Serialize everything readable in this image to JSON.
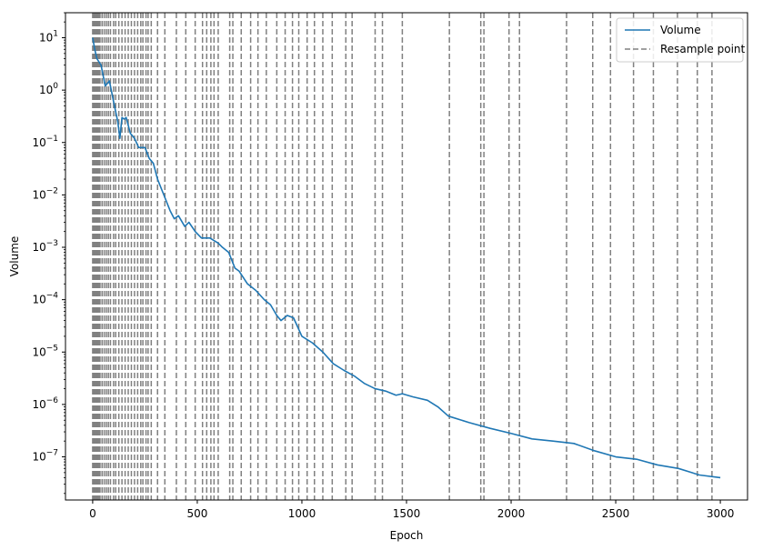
{
  "chart_data": {
    "type": "line",
    "xlabel": "Epoch",
    "ylabel": "Volume",
    "xlim": [
      -130,
      3130
    ],
    "ylim": [
      1.5e-08,
      30
    ],
    "yscale": "log",
    "grid": false,
    "legend_position": "top-right",
    "x_ticks": [
      0,
      500,
      1000,
      1500,
      2000,
      2500,
      3000
    ],
    "x_tick_labels": [
      "0",
      "500",
      "1000",
      "1500",
      "2000",
      "2500",
      "3000"
    ],
    "y_ticks": [
      {
        "value": 10,
        "base": "10",
        "exp": "1"
      },
      {
        "value": 1,
        "base": "10",
        "exp": "0"
      },
      {
        "value": 0.1,
        "base": "10",
        "exp": "−1"
      },
      {
        "value": 0.01,
        "base": "10",
        "exp": "−2"
      },
      {
        "value": 0.001,
        "base": "10",
        "exp": "−3"
      },
      {
        "value": 0.0001,
        "base": "10",
        "exp": "−4"
      },
      {
        "value": 1e-05,
        "base": "10",
        "exp": "−5"
      },
      {
        "value": 1e-06,
        "base": "10",
        "exp": "−6"
      },
      {
        "value": 1e-07,
        "base": "10",
        "exp": "−7"
      }
    ],
    "series": [
      {
        "name": "Volume",
        "color": "#1f77b4",
        "style": "solid",
        "points": [
          [
            0,
            10
          ],
          [
            10,
            6
          ],
          [
            20,
            4
          ],
          [
            40,
            3
          ],
          [
            60,
            1.2
          ],
          [
            80,
            1.5
          ],
          [
            100,
            0.6
          ],
          [
            120,
            0.25
          ],
          [
            130,
            0.12
          ],
          [
            140,
            0.3
          ],
          [
            150,
            0.28
          ],
          [
            160,
            0.3
          ],
          [
            180,
            0.15
          ],
          [
            200,
            0.12
          ],
          [
            220,
            0.08
          ],
          [
            250,
            0.08
          ],
          [
            270,
            0.05
          ],
          [
            290,
            0.04
          ],
          [
            310,
            0.02
          ],
          [
            340,
            0.01
          ],
          [
            370,
            0.005
          ],
          [
            390,
            0.0035
          ],
          [
            410,
            0.004
          ],
          [
            440,
            0.0025
          ],
          [
            460,
            0.003
          ],
          [
            490,
            0.002
          ],
          [
            520,
            0.0015
          ],
          [
            560,
            0.0015
          ],
          [
            600,
            0.0012
          ],
          [
            620,
            0.001
          ],
          [
            650,
            0.0008
          ],
          [
            680,
            0.0004
          ],
          [
            700,
            0.00035
          ],
          [
            740,
            0.0002
          ],
          [
            780,
            0.00015
          ],
          [
            820,
            0.0001
          ],
          [
            850,
            8e-05
          ],
          [
            880,
            5e-05
          ],
          [
            900,
            4e-05
          ],
          [
            930,
            5e-05
          ],
          [
            960,
            4.5e-05
          ],
          [
            1000,
            2e-05
          ],
          [
            1050,
            1.5e-05
          ],
          [
            1100,
            1e-05
          ],
          [
            1150,
            6e-06
          ],
          [
            1200,
            4.5e-06
          ],
          [
            1250,
            3.5e-06
          ],
          [
            1300,
            2.5e-06
          ],
          [
            1350,
            2e-06
          ],
          [
            1400,
            1.8e-06
          ],
          [
            1450,
            1.5e-06
          ],
          [
            1480,
            1.6e-06
          ],
          [
            1530,
            1.4e-06
          ],
          [
            1600,
            1.2e-06
          ],
          [
            1650,
            9e-07
          ],
          [
            1700,
            6e-07
          ],
          [
            1800,
            4.5e-07
          ],
          [
            1900,
            3.5e-07
          ],
          [
            2000,
            2.8e-07
          ],
          [
            2100,
            2.2e-07
          ],
          [
            2200,
            2e-07
          ],
          [
            2300,
            1.8e-07
          ],
          [
            2400,
            1.3e-07
          ],
          [
            2500,
            1e-07
          ],
          [
            2600,
            9e-08
          ],
          [
            2700,
            7e-08
          ],
          [
            2800,
            6e-08
          ],
          [
            2900,
            4.5e-08
          ],
          [
            3000,
            4e-08
          ]
        ]
      }
    ],
    "resample_points": {
      "name": "Resample point",
      "color": "#808080",
      "style": "dashed",
      "x": [
        0,
        5,
        10,
        15,
        20,
        25,
        30,
        35,
        45,
        55,
        65,
        75,
        85,
        100,
        110,
        125,
        140,
        155,
        170,
        185,
        200,
        215,
        230,
        240,
        255,
        265,
        280,
        310,
        345,
        400,
        445,
        490,
        525,
        545,
        565,
        580,
        600,
        655,
        670,
        710,
        755,
        790,
        830,
        880,
        920,
        955,
        985,
        1025,
        1060,
        1100,
        1145,
        1210,
        1240,
        1350,
        1385,
        1480,
        1705,
        1855,
        1870,
        1990,
        2040,
        2265,
        2390,
        2475,
        2585,
        2680,
        2795,
        2890,
        2960
      ]
    }
  }
}
